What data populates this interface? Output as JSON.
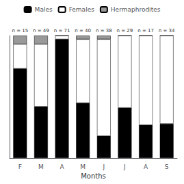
{
  "chart_data": {
    "type": "bar",
    "xlabel": "Months",
    "categories": [
      "F",
      "M",
      "A",
      "M",
      "J",
      "J",
      "A",
      "S"
    ],
    "series": [
      {
        "name": "Males",
        "color": "#000000",
        "values": [
          0.73,
          0.42,
          0.97,
          0.45,
          0.18,
          0.41,
          0.27,
          0.28
        ]
      },
      {
        "name": "Females",
        "color": "#ffffff",
        "values": [
          0.2,
          0.51,
          0.03,
          0.52,
          0.79,
          0.59,
          0.73,
          0.72
        ]
      },
      {
        "name": "Hermaphrodites",
        "color": "#999999",
        "values": [
          0.07,
          0.07,
          0.0,
          0.03,
          0.03,
          0.0,
          0.0,
          0.0
        ]
      }
    ],
    "annotations": [
      "n = 15",
      "n = 49",
      "n = 71",
      "n = 40",
      "n = 38",
      "n = 29",
      "n = 17",
      "n = 34"
    ],
    "stacked": true,
    "ylim": [
      0,
      1
    ],
    "yticks": [],
    "tick_labels": "x",
    "grid": false,
    "legend": "top"
  }
}
